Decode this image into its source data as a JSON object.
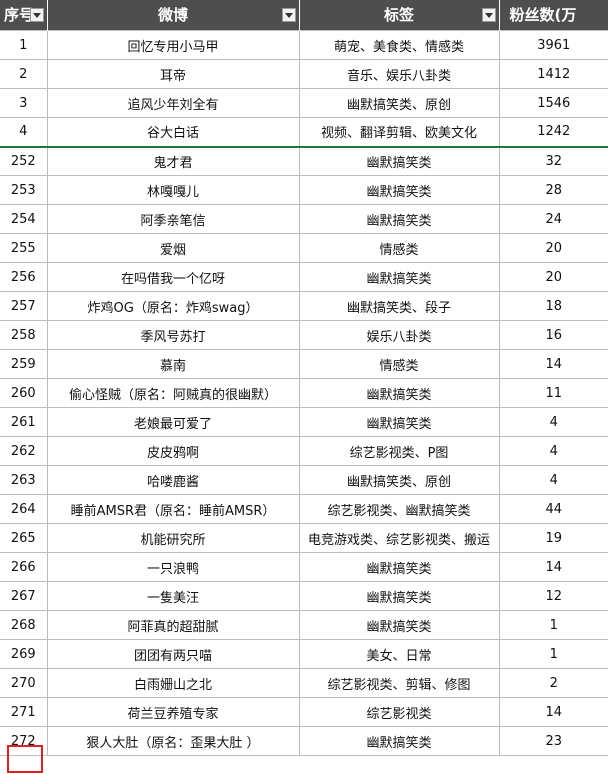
{
  "sheet": {
    "headers": [
      "序号",
      "微博",
      "标签",
      "粉丝数(万"
    ],
    "rows": [
      [
        "1",
        "回忆专用小马甲",
        "萌宠、美食类、情感类",
        "3961"
      ],
      [
        "2",
        "耳帝",
        "音乐、娱乐八卦类",
        "1412"
      ],
      [
        "3",
        "追风少年刘全有",
        "幽默搞笑类、原创",
        "1546"
      ],
      [
        "4",
        "谷大白话",
        "视频、翻译剪辑、欧美文化",
        "1242"
      ],
      [
        "252",
        "鬼才君",
        "幽默搞笑类",
        "32"
      ],
      [
        "253",
        "林嘎嘎儿",
        "幽默搞笑类",
        "28"
      ],
      [
        "254",
        "阿季亲笔信",
        "幽默搞笑类",
        "24"
      ],
      [
        "255",
        "爱烟",
        "情感类",
        "20"
      ],
      [
        "256",
        "在吗借我一个亿呀",
        "幽默搞笑类",
        "20"
      ],
      [
        "257",
        "炸鸡OG（原名：炸鸡swag）",
        "幽默搞笑类、段子",
        "18"
      ],
      [
        "258",
        "季风号苏打",
        "娱乐八卦类",
        "16"
      ],
      [
        "259",
        "慕南",
        "情感类",
        "14"
      ],
      [
        "260",
        "偷心怪贼（原名：阿贼真的很幽默）",
        "幽默搞笑类",
        "11"
      ],
      [
        "261",
        "老娘最可爱了",
        "幽默搞笑类",
        "4"
      ],
      [
        "262",
        "皮皮鸦啊",
        "综艺影视类、P图",
        "4"
      ],
      [
        "263",
        "哈喽鹿酱",
        "幽默搞笑类、原创",
        "4"
      ],
      [
        "264",
        "睡前AMSR君（原名：睡前AMSR）",
        "综艺影视类、幽默搞笑类",
        "44"
      ],
      [
        "265",
        "机能研究所",
        "电竞游戏类、综艺影视类、搬运",
        "19"
      ],
      [
        "266",
        "一只浪鸭",
        "幽默搞笑类",
        "14"
      ],
      [
        "267",
        "一隻美汪",
        "幽默搞笑类",
        "12"
      ],
      [
        "268",
        "阿菲真的超甜腻",
        "幽默搞笑类",
        "1"
      ],
      [
        "269",
        "团团有两只喵",
        "美女、日常",
        "1"
      ],
      [
        "270",
        "白雨姗山之北",
        "综艺影视类、剪辑、修图",
        "2"
      ],
      [
        "271",
        "荷兰豆养殖专家",
        "综艺影视类",
        "14"
      ],
      [
        "272",
        "狠人大肚（原名：歪果大肚 ）",
        "幽默搞笑类",
        "23"
      ]
    ]
  },
  "colors": {
    "header_bg": "#4e4e4e",
    "header_text": "#ffffff",
    "grid_line": "#bdbdbd",
    "separator_line": "#1f7a3a",
    "highlight": "#e02020"
  },
  "icons": {
    "filter": "filter-dropdown-icon"
  }
}
